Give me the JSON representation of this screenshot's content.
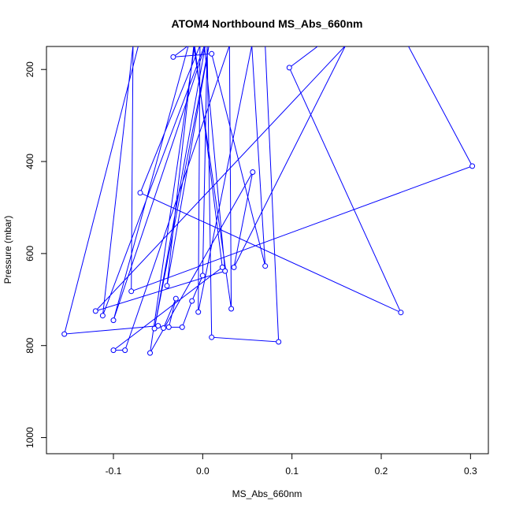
{
  "chart_data": {
    "type": "line",
    "title": "ATOM4 Northbound MS_Abs_660nm",
    "xlabel": "MS_Abs_660nm",
    "ylabel": "Pressure (mbar)",
    "xlim": [
      -0.175,
      0.32
    ],
    "ylim": [
      1035,
      150
    ],
    "y_reversed": true,
    "x_ticks": [
      -0.1,
      0.0,
      0.1,
      0.2,
      0.3
    ],
    "x_tick_labels": [
      "-0.1",
      "0.0",
      "0.1",
      "0.2",
      "0.3"
    ],
    "y_ticks": [
      200,
      400,
      600,
      800,
      1000
    ],
    "y_tick_labels": [
      "200",
      "400",
      "600",
      "800",
      "1000"
    ],
    "grid": false,
    "series": [
      {
        "color": "#0000ff",
        "marker": "open-circle",
        "points": [
          [
            -0.072,
            148
          ],
          [
            -0.155,
            775
          ],
          [
            -0.05,
            757
          ],
          [
            -0.044,
            762
          ],
          [
            -0.03,
            698
          ],
          [
            -0.038,
            760
          ],
          [
            -0.023,
            760
          ],
          [
            -0.012,
            703
          ],
          [
            0.0,
            648
          ],
          [
            0.005,
            148
          ],
          [
            0.01,
            782
          ],
          [
            0.085,
            792
          ],
          [
            0.07,
            148
          ],
          [
            0.23,
            148
          ],
          [
            0.302,
            410
          ],
          [
            -0.08,
            682
          ],
          [
            -0.078,
            148
          ],
          [
            -0.112,
            735
          ],
          [
            0.002,
            148
          ],
          [
            0.025,
            638
          ],
          [
            -0.12,
            725
          ],
          [
            0.16,
            148
          ],
          [
            0.035,
            630
          ],
          [
            0.056,
            423
          ],
          [
            -0.059,
            816
          ],
          [
            -0.009,
            148
          ],
          [
            0.022,
            630
          ],
          [
            -0.1,
            810
          ],
          [
            -0.087,
            810
          ],
          [
            0.03,
            148
          ],
          [
            0.032,
            720
          ],
          [
            -0.01,
            148
          ],
          [
            -0.04,
            670
          ],
          [
            0.007,
            148
          ],
          [
            -0.054,
            763
          ],
          [
            0.003,
            148
          ],
          [
            -0.1,
            745
          ],
          [
            -0.016,
            148
          ],
          [
            -0.033,
            173
          ],
          [
            0.01,
            166
          ],
          [
            0.07,
            627
          ],
          [
            0.055,
            148
          ],
          [
            0.13,
            148
          ],
          [
            0.097,
            196
          ],
          [
            0.222,
            728
          ],
          [
            -0.07,
            468
          ],
          [
            -0.003,
            148
          ],
          [
            -0.005,
            727
          ],
          [
            0.055,
            148
          ]
        ]
      }
    ]
  }
}
